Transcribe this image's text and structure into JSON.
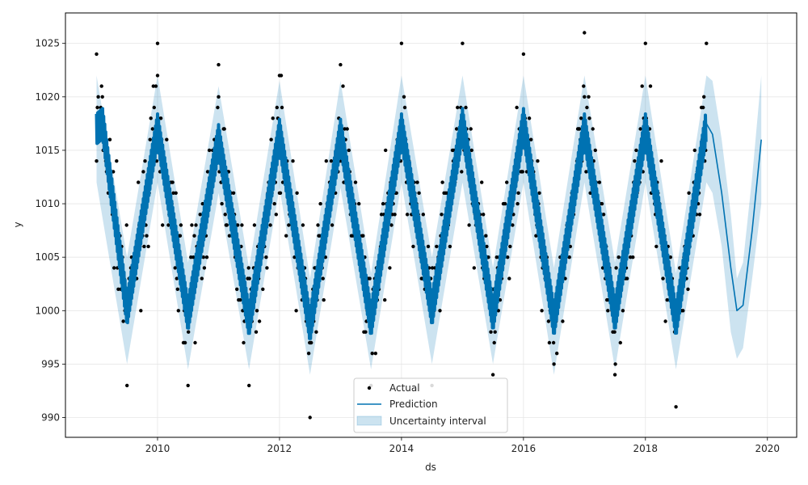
{
  "chart_data": {
    "type": "scatter",
    "title": "",
    "xlabel": "ds",
    "ylabel": "y",
    "xlim": [
      2008.49,
      2020.48
    ],
    "ylim": [
      988.15,
      1027.85
    ],
    "x_ticks": [
      2010,
      2012,
      2014,
      2016,
      2018,
      2020
    ],
    "x_tick_labels": [
      "2010",
      "2012",
      "2014",
      "2016",
      "2018",
      "2020"
    ],
    "y_ticks": [
      990,
      995,
      1000,
      1005,
      1010,
      1015,
      1020,
      1025
    ],
    "y_tick_labels": [
      "990",
      "995",
      "1000",
      "1005",
      "1010",
      "1015",
      "1020",
      "1025"
    ],
    "grid": true,
    "legend_position": "bottom-center",
    "colors": {
      "actual": "#000000",
      "prediction": "#0072B2",
      "uncertainty": "#0072B2",
      "grid": "#e6e6e6"
    },
    "series": [
      {
        "name": "Actual",
        "kind": "points",
        "description_range": [
          2009.0,
          2019.0
        ],
        "seasonal_peaks": [
          {
            "x": 2009.0,
            "y": 1024
          },
          {
            "x": 2010.0,
            "y": 1025
          },
          {
            "x": 2011.0,
            "y": 1023
          },
          {
            "x": 2012.0,
            "y": 1022
          },
          {
            "x": 2013.0,
            "y": 1023
          },
          {
            "x": 2014.0,
            "y": 1025
          },
          {
            "x": 2015.0,
            "y": 1025
          },
          {
            "x": 2016.0,
            "y": 1024
          },
          {
            "x": 2017.0,
            "y": 1026
          },
          {
            "x": 2018.0,
            "y": 1025
          },
          {
            "x": 2019.0,
            "y": 1025
          }
        ],
        "seasonal_troughs": [
          {
            "x": 2009.5,
            "y": 993
          },
          {
            "x": 2010.5,
            "y": 993
          },
          {
            "x": 2011.5,
            "y": 993
          },
          {
            "x": 2012.5,
            "y": 990
          },
          {
            "x": 2013.5,
            "y": 993
          },
          {
            "x": 2014.5,
            "y": 993
          },
          {
            "x": 2015.5,
            "y": 994
          },
          {
            "x": 2016.5,
            "y": 995
          },
          {
            "x": 2017.5,
            "y": 994
          },
          {
            "x": 2018.5,
            "y": 991
          }
        ]
      },
      {
        "name": "Prediction",
        "kind": "line",
        "x": [
          2009.0,
          2009.1,
          2009.5,
          2010.0,
          2010.5,
          2011.0,
          2011.5,
          2012.0,
          2012.5,
          2013.0,
          2013.5,
          2014.0,
          2014.5,
          2015.0,
          2015.5,
          2016.0,
          2016.5,
          2017.0,
          2017.5,
          2018.0,
          2018.5,
          2019.0,
          2019.1,
          2019.25,
          2019.4,
          2019.5,
          2019.6,
          2019.75,
          2019.9
        ],
        "y": [
          1017,
          1017.5,
          1000,
          1017,
          999.5,
          1016,
          999,
          1016.5,
          998.5,
          1016.5,
          999,
          1017,
          1000,
          1017.5,
          999.5,
          1017.5,
          999,
          1017,
          999.5,
          1017,
          999,
          1017.5,
          1016.5,
          1011,
          1004,
          1000,
          1000.5,
          1007.5,
          1016
        ]
      },
      {
        "name": "Uncertainty interval",
        "kind": "band",
        "x": [
          2009.0,
          2009.5,
          2010.0,
          2010.5,
          2011.0,
          2011.5,
          2012.0,
          2012.5,
          2013.0,
          2013.5,
          2014.0,
          2014.5,
          2015.0,
          2015.5,
          2016.0,
          2016.5,
          2017.0,
          2017.5,
          2018.0,
          2018.5,
          2019.0,
          2019.1,
          2019.25,
          2019.4,
          2019.5,
          2019.6,
          2019.75,
          2019.9
        ],
        "lower": [
          1012,
          995,
          1012,
          994.5,
          1011,
          994.5,
          1011.5,
          994,
          1011.5,
          994.5,
          1012,
          995,
          1012,
          995,
          1012,
          994,
          1012,
          994.5,
          1012,
          994.5,
          1012,
          1011,
          1006,
          998,
          995.5,
          996.5,
          1003,
          1010
        ],
        "upper": [
          1022,
          1005,
          1022,
          1004.5,
          1021,
          1004,
          1021.5,
          1003,
          1021.5,
          1003.5,
          1022,
          1005,
          1022,
          1004,
          1022,
          1004,
          1022,
          1004.5,
          1022,
          1003.5,
          1022,
          1021.5,
          1016,
          1009,
          1003,
          1004.5,
          1012.5,
          1022
        ]
      }
    ]
  }
}
